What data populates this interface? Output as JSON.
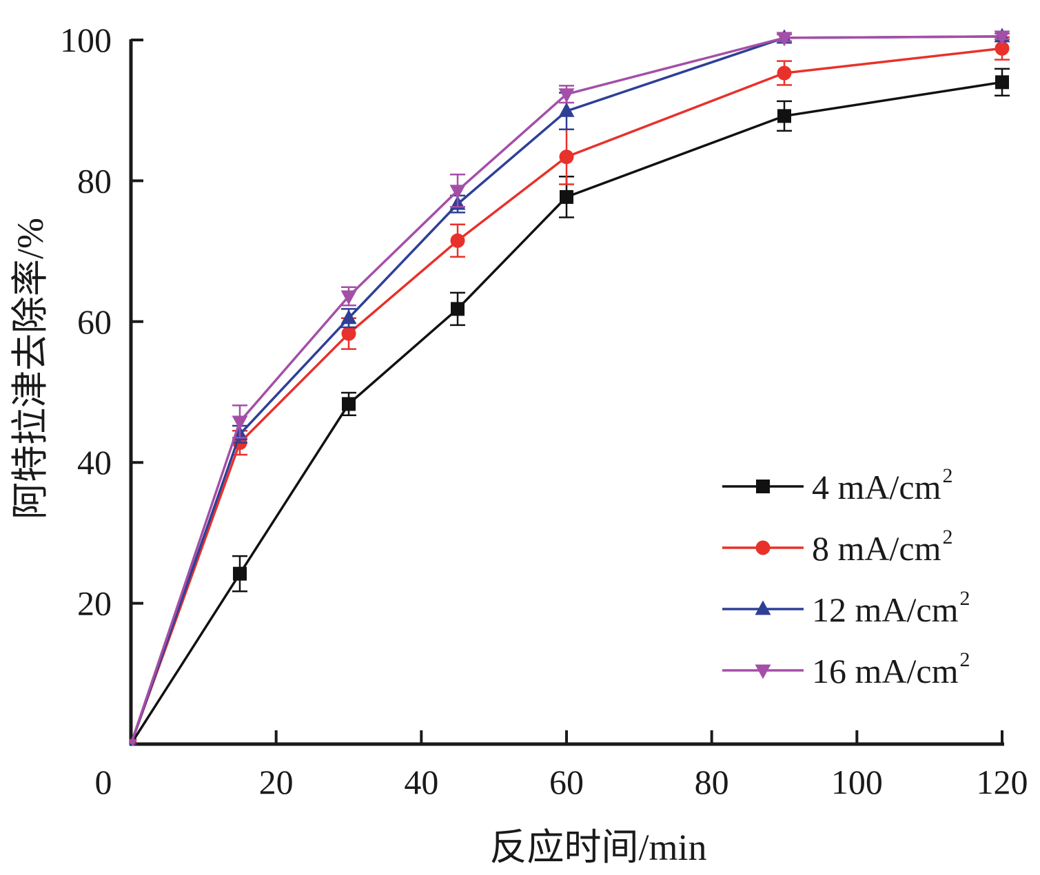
{
  "chart_data": {
    "type": "line",
    "title": "",
    "xlabel": "反应时间/min",
    "ylabel": "阿特拉津去除率/%",
    "xlim": [
      0,
      120
    ],
    "ylim": [
      0,
      100
    ],
    "xticks": [
      0,
      20,
      40,
      60,
      80,
      100,
      120
    ],
    "yticks": [
      20,
      40,
      60,
      80,
      100
    ],
    "x_origin_label": "0",
    "grid": false,
    "legend_position": "bottom-right",
    "x": [
      0,
      15,
      30,
      45,
      60,
      90,
      120
    ],
    "series": [
      {
        "name": "4 mA/cm",
        "superscript": "2",
        "color": "#111111",
        "marker": "square",
        "values": [
          0,
          24.2,
          48.3,
          61.8,
          77.7,
          89.2,
          94.0
        ],
        "errors": [
          0,
          2.5,
          1.6,
          2.3,
          2.9,
          2.1,
          1.9
        ]
      },
      {
        "name": "8 mA/cm",
        "superscript": "2",
        "color": "#e8312a",
        "marker": "circle",
        "values": [
          0,
          42.8,
          58.3,
          71.5,
          83.4,
          95.3,
          98.8
        ],
        "errors": [
          0,
          1.7,
          2.2,
          2.3,
          3.9,
          1.7,
          1.6
        ]
      },
      {
        "name": "12 mA/cm",
        "superscript": "2",
        "color": "#2e3f96",
        "marker": "triangle-up",
        "values": [
          0,
          44.0,
          60.5,
          76.7,
          89.9,
          100.3,
          100.5
        ],
        "errors": [
          0,
          1.2,
          1.3,
          1.2,
          2.6,
          0.5,
          0.4
        ]
      },
      {
        "name": "16 mA/cm",
        "superscript": "2",
        "color": "#a44fa7",
        "marker": "triangle-down",
        "values": [
          0,
          45.8,
          63.6,
          78.6,
          92.3,
          100.3,
          100.5
        ],
        "errors": [
          0,
          2.3,
          1.3,
          2.3,
          1.2,
          0.5,
          0.4
        ]
      }
    ]
  }
}
